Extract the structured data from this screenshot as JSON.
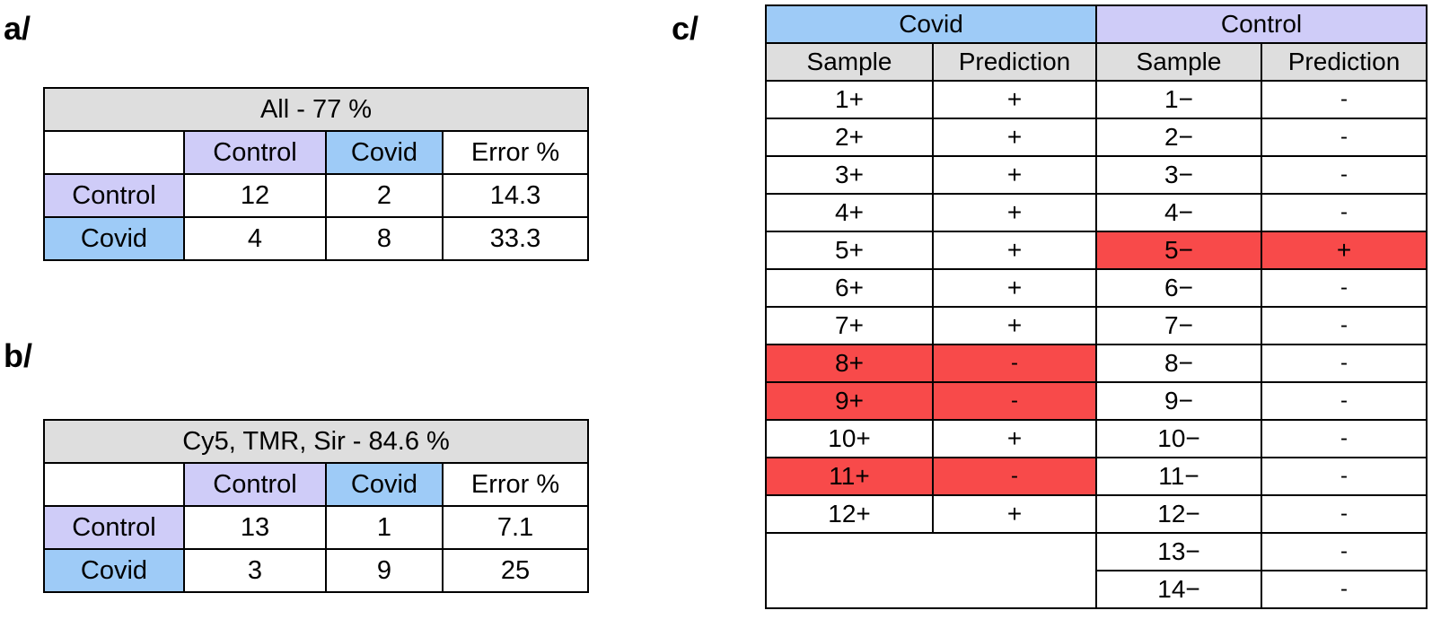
{
  "labels": {
    "a": "a/",
    "b": "b/",
    "c": "c/"
  },
  "table_a": {
    "title": "All - 77 %",
    "columns": [
      "",
      "Control",
      "Covid",
      "Error %"
    ],
    "rows": [
      {
        "label": "Control",
        "control": "12",
        "covid": "2",
        "error": "14.3"
      },
      {
        "label": "Covid",
        "control": "4",
        "covid": "8",
        "error": "33.3"
      }
    ]
  },
  "table_b": {
    "title": "Cy5, TMR, Sir - 84.6 %",
    "columns": [
      "",
      "Control",
      "Covid",
      "Error %"
    ],
    "rows": [
      {
        "label": "Control",
        "control": "13",
        "covid": "1",
        "error": "7.1"
      },
      {
        "label": "Covid",
        "control": "3",
        "covid": "9",
        "error": "25"
      }
    ]
  },
  "table_c": {
    "groups": [
      "Covid",
      "Control"
    ],
    "subheaders": [
      "Sample",
      "Prediction",
      "Sample",
      "Prediction"
    ],
    "covid": [
      {
        "sample": "1+",
        "prediction": "+",
        "misclassified": false
      },
      {
        "sample": "2+",
        "prediction": "+",
        "misclassified": false
      },
      {
        "sample": "3+",
        "prediction": "+",
        "misclassified": false
      },
      {
        "sample": "4+",
        "prediction": "+",
        "misclassified": false
      },
      {
        "sample": "5+",
        "prediction": "+",
        "misclassified": false
      },
      {
        "sample": "6+",
        "prediction": "+",
        "misclassified": false
      },
      {
        "sample": "7+",
        "prediction": "+",
        "misclassified": false
      },
      {
        "sample": "8+",
        "prediction": "-",
        "misclassified": true
      },
      {
        "sample": "9+",
        "prediction": "-",
        "misclassified": true
      },
      {
        "sample": "10+",
        "prediction": "+",
        "misclassified": false
      },
      {
        "sample": "11+",
        "prediction": "-",
        "misclassified": true
      },
      {
        "sample": "12+",
        "prediction": "+",
        "misclassified": false
      }
    ],
    "control": [
      {
        "sample": "1−",
        "prediction": "-",
        "misclassified": false
      },
      {
        "sample": "2−",
        "prediction": "-",
        "misclassified": false
      },
      {
        "sample": "3−",
        "prediction": "-",
        "misclassified": false
      },
      {
        "sample": "4−",
        "prediction": "-",
        "misclassified": false
      },
      {
        "sample": "5−",
        "prediction": "+",
        "misclassified": true
      },
      {
        "sample": "6−",
        "prediction": "-",
        "misclassified": false
      },
      {
        "sample": "7−",
        "prediction": "-",
        "misclassified": false
      },
      {
        "sample": "8−",
        "prediction": "-",
        "misclassified": false
      },
      {
        "sample": "9−",
        "prediction": "-",
        "misclassified": false
      },
      {
        "sample": "10−",
        "prediction": "-",
        "misclassified": false
      },
      {
        "sample": "11−",
        "prediction": "-",
        "misclassified": false
      },
      {
        "sample": "12−",
        "prediction": "-",
        "misclassified": false
      },
      {
        "sample": "13−",
        "prediction": "-",
        "misclassified": false
      },
      {
        "sample": "14−",
        "prediction": "-",
        "misclassified": false
      }
    ]
  },
  "colors": {
    "header_grey": "#dedede",
    "control": "#cfccf8",
    "covid": "#9ecbf7",
    "misclassified": "#f84a4a"
  }
}
